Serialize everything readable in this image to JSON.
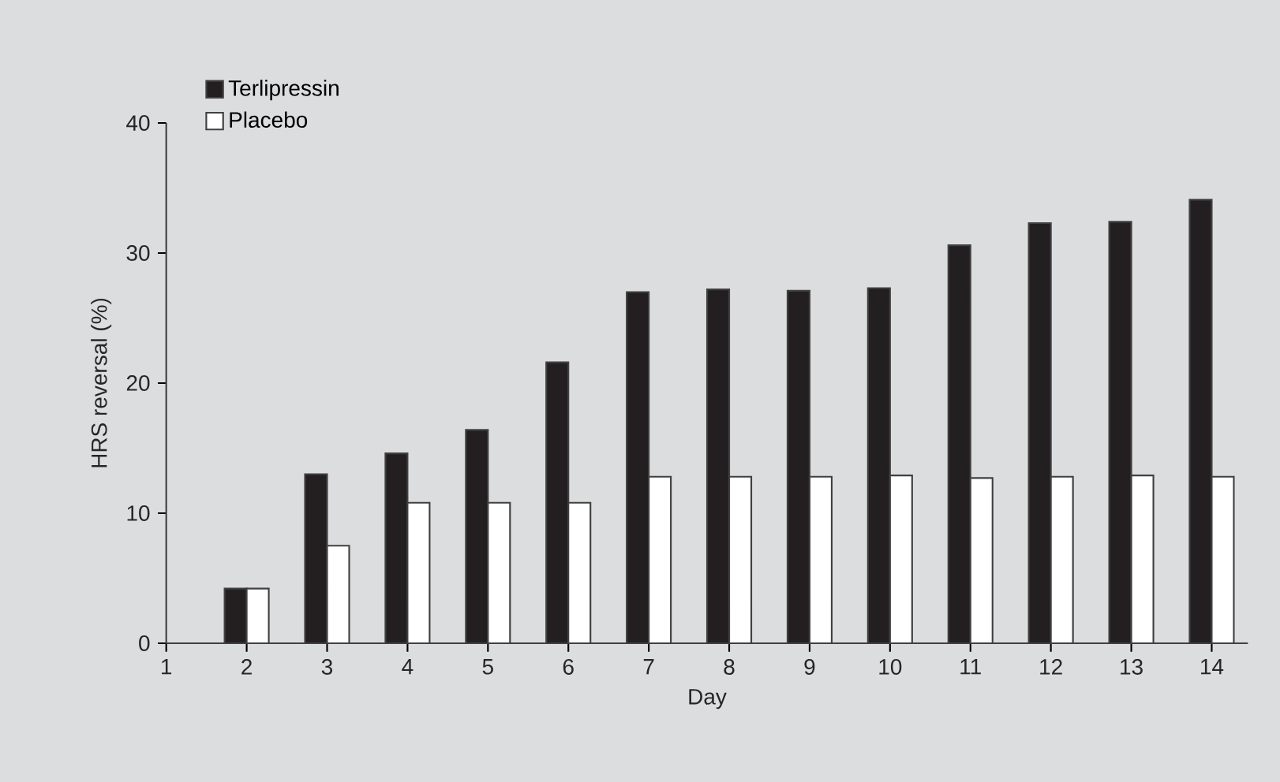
{
  "chart_data": {
    "type": "bar",
    "xlabel": "Day",
    "ylabel": "HRS reversal (%)",
    "categories": [
      "1",
      "2",
      "3",
      "4",
      "5",
      "6",
      "7",
      "8",
      "9",
      "10",
      "11",
      "12",
      "13",
      "14"
    ],
    "series": [
      {
        "name": "Terlipressin",
        "color": "#231f20",
        "values": [
          null,
          4.2,
          13.0,
          14.6,
          16.4,
          21.6,
          27.0,
          27.2,
          27.1,
          27.3,
          30.6,
          32.3,
          32.4,
          34.1
        ]
      },
      {
        "name": "Placebo",
        "color": "#ffffff",
        "values": [
          null,
          4.2,
          7.5,
          10.8,
          10.8,
          10.8,
          12.8,
          12.8,
          12.8,
          12.9,
          12.7,
          12.8,
          12.9,
          12.8
        ]
      }
    ],
    "ylim": [
      0,
      40
    ],
    "yticks": [
      0,
      10,
      20,
      30,
      40
    ],
    "grid": false,
    "legend": "top left"
  }
}
